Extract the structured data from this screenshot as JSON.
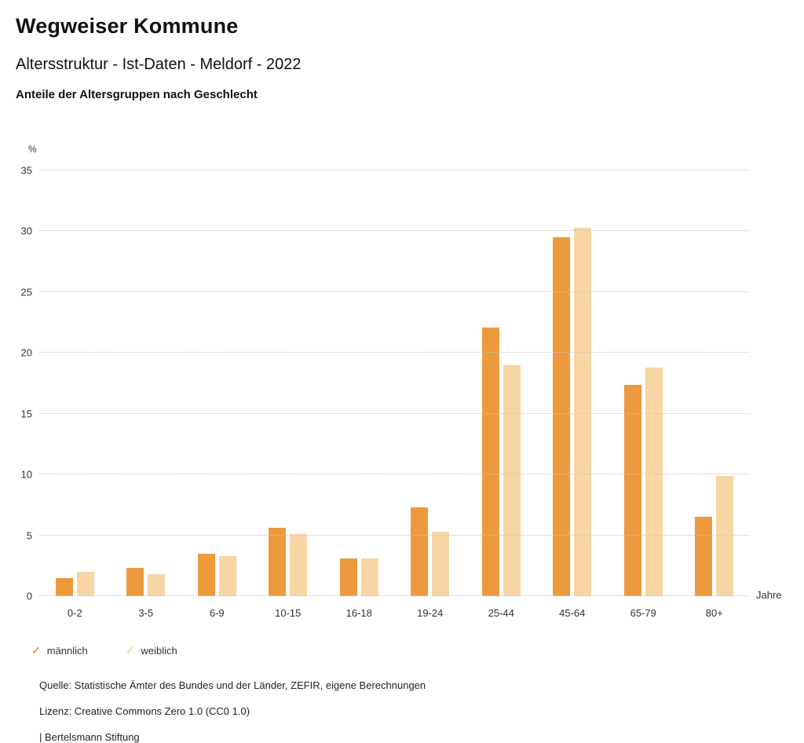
{
  "header": {
    "title": "Wegweiser Kommune",
    "subtitle": "Altersstruktur - Ist-Daten - Meldorf - 2022",
    "subheading": "Anteile der Altersgruppen nach Geschlecht"
  },
  "icons": {
    "legend_check": "✓"
  },
  "chart_data": {
    "type": "bar",
    "title": "Anteile der Altersgruppen nach Geschlecht",
    "unit": "%",
    "xlabel": "Jahre",
    "ylim": [
      0,
      35
    ],
    "yticks": [
      0,
      5,
      10,
      15,
      20,
      25,
      30,
      35
    ],
    "grid": "horizontal-dotted",
    "legend_position": "bottom-left",
    "categories": [
      "0-2",
      "3-5",
      "6-9",
      "10-15",
      "16-18",
      "19-24",
      "25-44",
      "45-64",
      "65-79",
      "80+"
    ],
    "series": [
      {
        "name": "männlich",
        "color": "#EC9A3D",
        "values": [
          1.5,
          2.3,
          3.5,
          5.6,
          3.1,
          7.3,
          22.1,
          29.5,
          17.4,
          6.5
        ]
      },
      {
        "name": "weiblich",
        "color": "#F8D5A4",
        "values": [
          2.0,
          1.8,
          3.3,
          5.1,
          3.1,
          5.3,
          19.0,
          30.3,
          18.8,
          9.9
        ]
      }
    ]
  },
  "footer": {
    "source": "Quelle: Statistische Ämter des Bundes und der Länder, ZEFIR, eigene Berechnungen",
    "license": "Lizenz: Creative Commons Zero 1.0 (CC0 1.0)",
    "attribution": "| Bertelsmann Stiftung"
  }
}
